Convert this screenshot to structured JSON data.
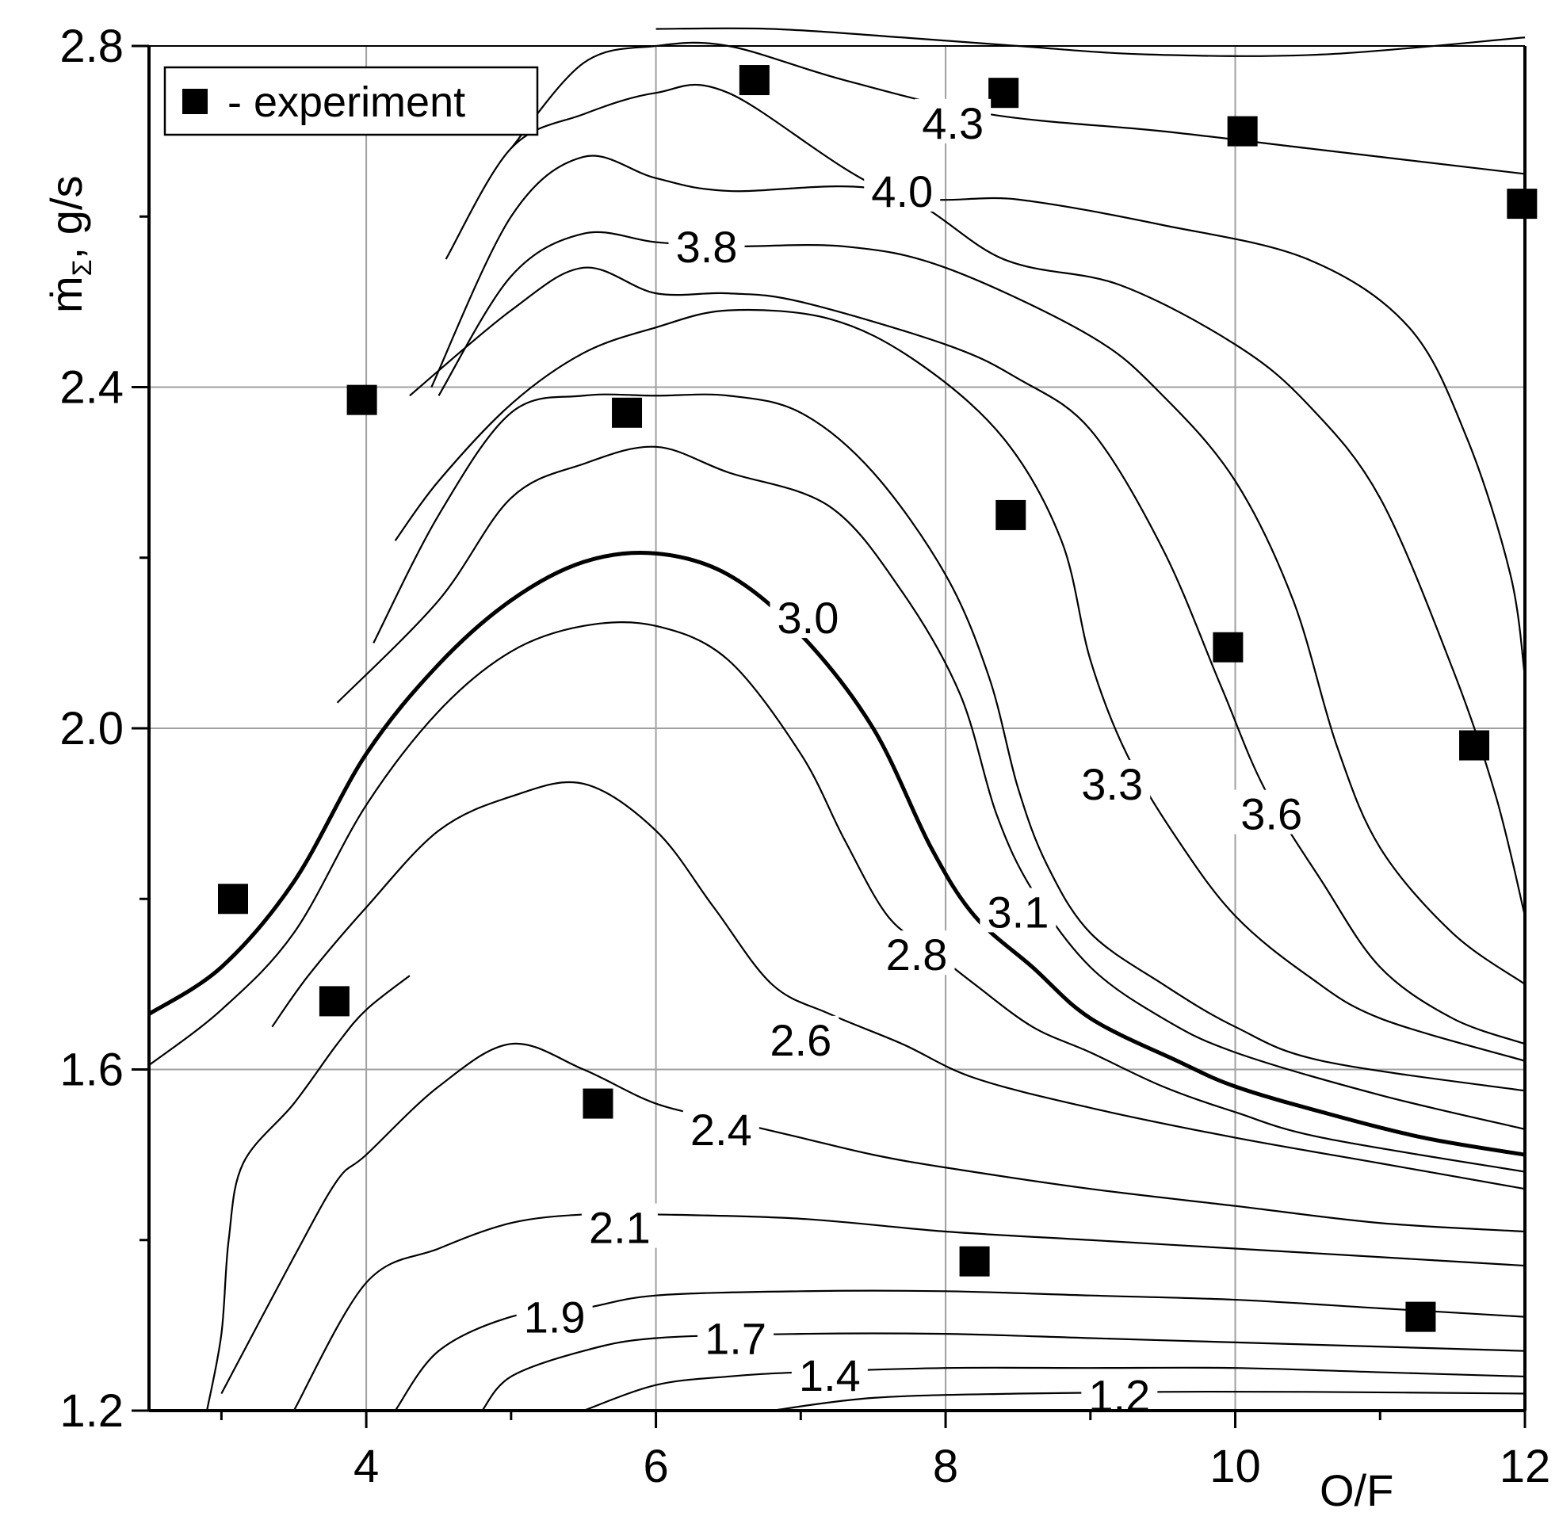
{
  "chart_data": {
    "type": "contour",
    "title": "",
    "xlabel": "O/F",
    "ylabel": "ṁΣ, g/s",
    "ylabel_main": "ṁ",
    "ylabel_sub": "Σ",
    "ylabel_rest": ", g/s",
    "xlim": [
      2.5,
      12.0
    ],
    "ylim": [
      1.2,
      2.8
    ],
    "xticks": [
      4,
      6,
      8,
      10,
      12
    ],
    "yticks": [
      1.2,
      1.6,
      2.0,
      2.4,
      2.8
    ],
    "xtick_labels": [
      "4",
      "6",
      "8",
      "10",
      "12"
    ],
    "ytick_labels": [
      "1.2",
      "1.6",
      "2.0",
      "2.4",
      "2.8"
    ],
    "grid": true,
    "legend": {
      "position": "top-left",
      "marker": "square",
      "label": "- experiment"
    },
    "contour_labels": [
      {
        "text": "4.3",
        "x": 8.05,
        "y": 2.71
      },
      {
        "text": "4.0",
        "x": 7.7,
        "y": 2.63
      },
      {
        "text": "3.8",
        "x": 6.35,
        "y": 2.565
      },
      {
        "text": "3.0",
        "x": 7.05,
        "y": 2.13
      },
      {
        "text": "3.3",
        "x": 9.15,
        "y": 1.935
      },
      {
        "text": "3.6",
        "x": 10.25,
        "y": 1.9
      },
      {
        "text": "3.1",
        "x": 8.5,
        "y": 1.785
      },
      {
        "text": "2.8",
        "x": 7.8,
        "y": 1.735
      },
      {
        "text": "2.6",
        "x": 7.0,
        "y": 1.635
      },
      {
        "text": "2.4",
        "x": 6.45,
        "y": 1.53
      },
      {
        "text": "2.1",
        "x": 5.75,
        "y": 1.415
      },
      {
        "text": "1.9",
        "x": 5.3,
        "y": 1.31
      },
      {
        "text": "1.7",
        "x": 6.55,
        "y": 1.285
      },
      {
        "text": "1.4",
        "x": 7.2,
        "y": 1.242
      },
      {
        "text": "1.2",
        "x": 9.2,
        "y": 1.218
      }
    ],
    "contour_lines": [
      {
        "level": "4.3",
        "points": [
          [
            6.0,
            2.82
          ],
          [
            6.8,
            2.82
          ],
          [
            7.7,
            2.81
          ],
          [
            8.5,
            2.8
          ],
          [
            9.4,
            2.79
          ],
          [
            10.6,
            2.79
          ],
          [
            12.0,
            2.81
          ]
        ]
      },
      {
        "level": "4.3b",
        "points": [
          [
            5.0,
            2.68
          ],
          [
            5.5,
            2.78
          ],
          [
            6.0,
            2.8
          ],
          [
            6.5,
            2.8
          ],
          [
            7.3,
            2.76
          ],
          [
            8.3,
            2.72
          ],
          [
            9.5,
            2.7
          ],
          [
            10.5,
            2.68
          ],
          [
            12.0,
            2.65
          ]
        ]
      },
      {
        "level": "4.0",
        "points": [
          [
            4.55,
            2.55
          ],
          [
            5.0,
            2.68
          ],
          [
            5.5,
            2.72
          ],
          [
            6.0,
            2.745
          ],
          [
            6.5,
            2.745
          ],
          [
            7.6,
            2.63
          ],
          [
            8.5,
            2.62
          ],
          [
            9.5,
            2.59
          ],
          [
            10.5,
            2.55
          ],
          [
            11.2,
            2.47
          ],
          [
            11.6,
            2.34
          ],
          [
            11.9,
            2.18
          ],
          [
            12.0,
            2.06
          ]
        ]
      },
      {
        "level": "3.8",
        "points": [
          [
            4.45,
            2.4
          ],
          [
            5.0,
            2.6
          ],
          [
            5.5,
            2.67
          ],
          [
            6.0,
            2.645
          ],
          [
            6.5,
            2.63
          ],
          [
            7.6,
            2.63
          ],
          [
            8.4,
            2.55
          ],
          [
            9.2,
            2.52
          ],
          [
            10.0,
            2.45
          ],
          [
            10.5,
            2.38
          ],
          [
            11.0,
            2.27
          ],
          [
            11.5,
            2.07
          ],
          [
            11.8,
            1.92
          ],
          [
            12.0,
            1.78
          ]
        ]
      },
      {
        "level": "3.8b",
        "points": [
          [
            4.5,
            2.39
          ],
          [
            5.0,
            2.53
          ],
          [
            5.5,
            2.58
          ],
          [
            6.0,
            2.57
          ],
          [
            6.5,
            2.565
          ],
          [
            7.3,
            2.565
          ],
          [
            8.0,
            2.54
          ],
          [
            9.0,
            2.46
          ],
          [
            9.5,
            2.39
          ],
          [
            10.0,
            2.29
          ],
          [
            10.4,
            2.15
          ],
          [
            10.7,
            1.98
          ],
          [
            11.0,
            1.86
          ],
          [
            11.5,
            1.76
          ],
          [
            12.0,
            1.7
          ]
        ]
      },
      {
        "level": "3.6",
        "points": [
          [
            4.3,
            2.39
          ],
          [
            5.0,
            2.49
          ],
          [
            5.5,
            2.54
          ],
          [
            6.0,
            2.51
          ],
          [
            6.5,
            2.51
          ],
          [
            7.0,
            2.5
          ],
          [
            8.0,
            2.45
          ],
          [
            8.5,
            2.41
          ],
          [
            9.0,
            2.35
          ],
          [
            9.5,
            2.21
          ],
          [
            9.9,
            2.05
          ],
          [
            10.2,
            1.93
          ],
          [
            10.6,
            1.82
          ],
          [
            11.0,
            1.72
          ],
          [
            11.5,
            1.66
          ],
          [
            12.0,
            1.63
          ]
        ]
      },
      {
        "level": "3.3",
        "points": [
          [
            4.2,
            2.22
          ],
          [
            4.5,
            2.29
          ],
          [
            5.0,
            2.38
          ],
          [
            5.5,
            2.44
          ],
          [
            6.0,
            2.47
          ],
          [
            6.5,
            2.49
          ],
          [
            7.2,
            2.48
          ],
          [
            7.8,
            2.43
          ],
          [
            8.4,
            2.34
          ],
          [
            8.8,
            2.22
          ],
          [
            9.0,
            2.08
          ],
          [
            9.25,
            1.97
          ],
          [
            9.6,
            1.87
          ],
          [
            10.0,
            1.78
          ],
          [
            10.5,
            1.71
          ],
          [
            11.0,
            1.66
          ],
          [
            12.0,
            1.61
          ]
        ]
      },
      {
        "level": "3.1",
        "points": [
          [
            4.05,
            2.1
          ],
          [
            4.5,
            2.25
          ],
          [
            5.0,
            2.37
          ],
          [
            5.5,
            2.39
          ],
          [
            6.0,
            2.39
          ],
          [
            6.5,
            2.39
          ],
          [
            7.0,
            2.37
          ],
          [
            7.5,
            2.3
          ],
          [
            8.0,
            2.18
          ],
          [
            8.3,
            2.06
          ],
          [
            8.5,
            1.93
          ],
          [
            8.7,
            1.84
          ],
          [
            9.0,
            1.76
          ],
          [
            9.5,
            1.7
          ],
          [
            10.0,
            1.65
          ],
          [
            10.6,
            1.61
          ],
          [
            12.0,
            1.575
          ]
        ]
      },
      {
        "level": "3.0b",
        "points": [
          [
            3.8,
            2.03
          ],
          [
            4.5,
            2.15
          ],
          [
            5.0,
            2.27
          ],
          [
            5.5,
            2.31
          ],
          [
            6.0,
            2.33
          ],
          [
            6.5,
            2.3
          ],
          [
            7.2,
            2.26
          ],
          [
            7.7,
            2.16
          ],
          [
            8.1,
            2.04
          ],
          [
            8.35,
            1.9
          ],
          [
            8.6,
            1.81
          ],
          [
            9.0,
            1.72
          ],
          [
            9.5,
            1.66
          ],
          [
            10.0,
            1.62
          ],
          [
            11.0,
            1.57
          ],
          [
            12.0,
            1.53
          ]
        ]
      },
      {
        "level": "3.0",
        "thick": true,
        "points": [
          [
            2.5,
            1.665
          ],
          [
            3.0,
            1.72
          ],
          [
            3.5,
            1.82
          ],
          [
            4.0,
            1.97
          ],
          [
            4.5,
            2.075
          ],
          [
            5.0,
            2.15
          ],
          [
            5.5,
            2.195
          ],
          [
            6.0,
            2.205
          ],
          [
            6.5,
            2.18
          ],
          [
            7.0,
            2.11
          ],
          [
            7.5,
            2.0
          ],
          [
            7.9,
            1.86
          ],
          [
            8.2,
            1.78
          ],
          [
            8.6,
            1.72
          ],
          [
            9.0,
            1.66
          ],
          [
            9.6,
            1.61
          ],
          [
            10.0,
            1.58
          ],
          [
            10.6,
            1.55
          ],
          [
            11.3,
            1.52
          ],
          [
            12.0,
            1.5
          ]
        ]
      },
      {
        "level": "2.8",
        "points": [
          [
            2.5,
            1.605
          ],
          [
            3.0,
            1.67
          ],
          [
            3.5,
            1.76
          ],
          [
            4.0,
            1.91
          ],
          [
            4.5,
            2.02
          ],
          [
            5.0,
            2.09
          ],
          [
            5.5,
            2.12
          ],
          [
            6.0,
            2.12
          ],
          [
            6.5,
            2.08
          ],
          [
            7.0,
            1.97
          ],
          [
            7.3,
            1.87
          ],
          [
            7.6,
            1.78
          ],
          [
            7.9,
            1.74
          ],
          [
            8.2,
            1.7
          ],
          [
            8.6,
            1.65
          ],
          [
            9.0,
            1.62
          ],
          [
            9.5,
            1.58
          ],
          [
            10.0,
            1.55
          ],
          [
            10.6,
            1.52
          ],
          [
            12.0,
            1.48
          ]
        ]
      },
      {
        "level": "2.6",
        "points": [
          [
            3.35,
            1.65
          ],
          [
            3.6,
            1.71
          ],
          [
            4.0,
            1.79
          ],
          [
            4.5,
            1.88
          ],
          [
            5.0,
            1.92
          ],
          [
            5.5,
            1.935
          ],
          [
            6.0,
            1.88
          ],
          [
            6.4,
            1.79
          ],
          [
            6.8,
            1.7
          ],
          [
            7.2,
            1.665
          ],
          [
            7.7,
            1.63
          ],
          [
            8.2,
            1.59
          ],
          [
            9.0,
            1.555
          ],
          [
            10.0,
            1.52
          ],
          [
            11.0,
            1.49
          ],
          [
            12.0,
            1.46
          ]
        ]
      },
      {
        "level": "2.4",
        "points": [
          [
            3.0,
            1.22
          ],
          [
            3.5,
            1.38
          ],
          [
            3.8,
            1.47
          ],
          [
            4.0,
            1.5
          ],
          [
            4.5,
            1.58
          ],
          [
            5.0,
            1.63
          ],
          [
            5.5,
            1.6
          ],
          [
            6.0,
            1.56
          ],
          [
            6.5,
            1.54
          ],
          [
            7.0,
            1.52
          ],
          [
            7.5,
            1.5
          ],
          [
            8.0,
            1.485
          ],
          [
            9.0,
            1.46
          ],
          [
            10.0,
            1.44
          ],
          [
            11.0,
            1.42
          ],
          [
            12.0,
            1.41
          ]
        ]
      },
      {
        "level": "2.1",
        "points": [
          [
            2.9,
            1.2
          ],
          [
            3.0,
            1.29
          ],
          [
            3.05,
            1.4
          ],
          [
            3.15,
            1.49
          ],
          [
            3.5,
            1.56
          ],
          [
            3.8,
            1.63
          ],
          [
            4.0,
            1.67
          ],
          [
            4.3,
            1.71
          ]
        ]
      },
      {
        "level": "2.1b",
        "points": [
          [
            3.5,
            1.2
          ],
          [
            4.0,
            1.35
          ],
          [
            4.5,
            1.39
          ],
          [
            5.0,
            1.42
          ],
          [
            5.5,
            1.43
          ],
          [
            6.0,
            1.43
          ],
          [
            7.0,
            1.425
          ],
          [
            8.0,
            1.41
          ],
          [
            9.0,
            1.4
          ],
          [
            10.0,
            1.39
          ],
          [
            11.0,
            1.38
          ],
          [
            12.0,
            1.37
          ]
        ]
      },
      {
        "level": "1.9",
        "points": [
          [
            4.2,
            1.2
          ],
          [
            4.5,
            1.27
          ],
          [
            5.0,
            1.31
          ],
          [
            5.5,
            1.32
          ],
          [
            6.0,
            1.335
          ],
          [
            7.0,
            1.34
          ],
          [
            8.0,
            1.34
          ],
          [
            9.0,
            1.335
          ],
          [
            10.0,
            1.33
          ],
          [
            11.0,
            1.32
          ],
          [
            12.0,
            1.31
          ]
        ]
      },
      {
        "level": "1.7",
        "points": [
          [
            4.8,
            1.2
          ],
          [
            5.0,
            1.24
          ],
          [
            5.5,
            1.27
          ],
          [
            6.0,
            1.285
          ],
          [
            7.0,
            1.29
          ],
          [
            8.0,
            1.29
          ],
          [
            9.0,
            1.285
          ],
          [
            10.0,
            1.28
          ],
          [
            11.0,
            1.275
          ],
          [
            12.0,
            1.27
          ]
        ]
      },
      {
        "level": "1.4",
        "points": [
          [
            5.5,
            1.2
          ],
          [
            6.0,
            1.23
          ],
          [
            6.5,
            1.24
          ],
          [
            7.0,
            1.245
          ],
          [
            8.0,
            1.25
          ],
          [
            9.0,
            1.25
          ],
          [
            10.0,
            1.25
          ],
          [
            11.0,
            1.245
          ],
          [
            12.0,
            1.24
          ]
        ]
      },
      {
        "level": "1.2",
        "points": [
          [
            6.8,
            1.2
          ],
          [
            7.5,
            1.215
          ],
          [
            8.5,
            1.22
          ],
          [
            9.5,
            1.222
          ],
          [
            10.5,
            1.222
          ],
          [
            12.0,
            1.22
          ]
        ]
      }
    ],
    "experiment_points": [
      {
        "x": 3.08,
        "y": 1.8
      },
      {
        "x": 3.78,
        "y": 1.68
      },
      {
        "x": 3.97,
        "y": 2.385
      },
      {
        "x": 5.6,
        "y": 1.56
      },
      {
        "x": 5.8,
        "y": 2.37
      },
      {
        "x": 6.68,
        "y": 2.76
      },
      {
        "x": 8.2,
        "y": 1.375
      },
      {
        "x": 8.4,
        "y": 2.745
      },
      {
        "x": 8.45,
        "y": 2.25
      },
      {
        "x": 9.95,
        "y": 2.095
      },
      {
        "x": 10.05,
        "y": 2.7
      },
      {
        "x": 11.28,
        "y": 1.31
      },
      {
        "x": 11.65,
        "y": 1.98
      },
      {
        "x": 11.98,
        "y": 2.615
      }
    ]
  }
}
